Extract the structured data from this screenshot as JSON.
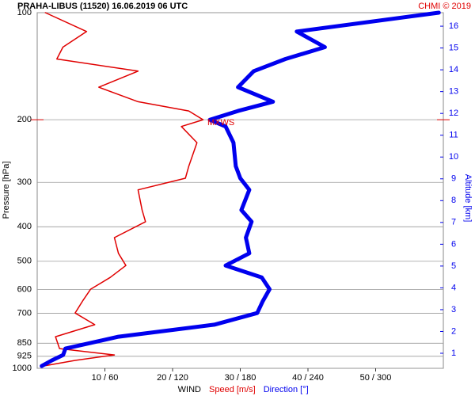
{
  "chart_data": {
    "type": "profile",
    "title": "PRAHA-LIBUS (11520)    16.06.2019 06 UTC",
    "credit": "CHMI © 2019",
    "ylabel": "Pressure [hPa]",
    "y2label": "Altitude [km]",
    "xlabel": "WIND",
    "ylog": true,
    "grid": true,
    "ylim": [
      1000,
      100
    ],
    "yticks": [
      100,
      200,
      300,
      400,
      500,
      600,
      700,
      850,
      925,
      1000
    ],
    "y2lim": [
      0.31,
      16.62
    ],
    "y2ticks": [
      1,
      2,
      3,
      4,
      5,
      6,
      7,
      8,
      9,
      10,
      11,
      12,
      13,
      14,
      15,
      16
    ],
    "xlim": [
      0,
      60
    ],
    "x2lim": [
      0,
      360
    ],
    "xticks": [
      {
        "value": 10,
        "label": "10 / 60"
      },
      {
        "value": 20,
        "label": "20 / 120"
      },
      {
        "value": 30,
        "label": "30 / 180"
      },
      {
        "value": 40,
        "label": "40 / 240"
      },
      {
        "value": 50,
        "label": "50 / 300"
      }
    ],
    "levels": [
      100,
      113,
      125,
      135,
      146,
      162,
      178,
      189,
      200,
      209,
      232,
      270,
      292,
      315,
      359,
      387,
      429,
      475,
      514,
      555,
      599,
      647,
      699,
      754,
      815,
      880,
      917,
      950,
      985
    ],
    "series": [
      {
        "name": "Speed [m/s]",
        "color": "#e00000",
        "axis": "x",
        "values": [
          1.2,
          7.3,
          3.8,
          2.9,
          14.9,
          9.1,
          14.9,
          22.4,
          24.5,
          21.3,
          23.6,
          22.4,
          21.9,
          14.9,
          15.5,
          16.0,
          11.4,
          12.0,
          13.1,
          10.8,
          7.9,
          6.7,
          5.6,
          8.5,
          2.7,
          3.3,
          11.4,
          5.6,
          0.9
        ]
      },
      {
        "name": "Direction [°]",
        "color": "#0000ee",
        "axis": "x2",
        "values": [
          356,
          230,
          255,
          220,
          192,
          178,
          209,
          178,
          153,
          167,
          174,
          176,
          180,
          188,
          181,
          190,
          185,
          188,
          167,
          199,
          206,
          200,
          195,
          157,
          72,
          25,
          23,
          13,
          4
        ]
      }
    ],
    "mxws": {
      "label": "MXWS",
      "pressure": 200
    }
  }
}
